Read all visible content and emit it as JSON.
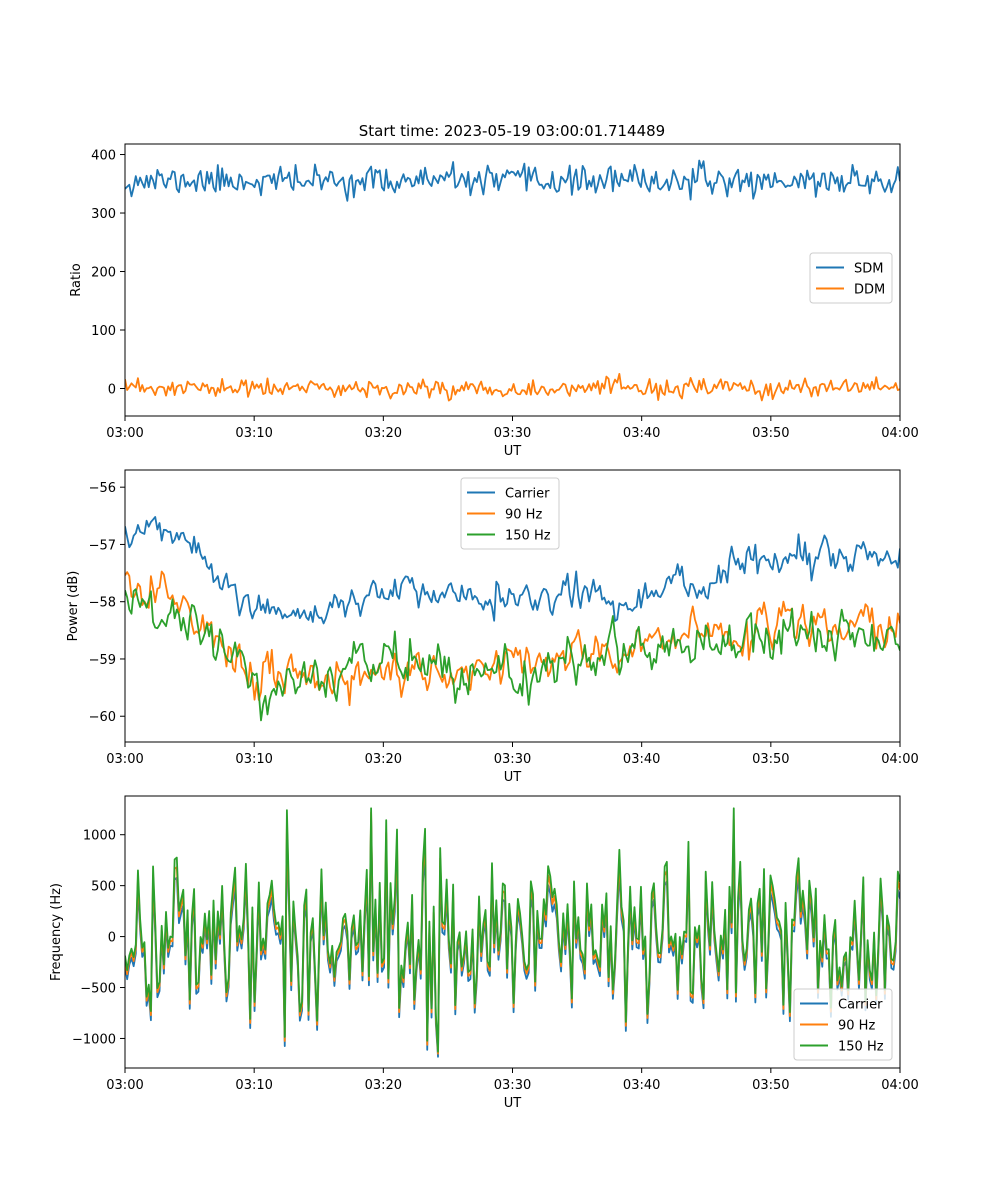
{
  "figure": {
    "title": "Start time: 2023-05-19 03:00:01.714489"
  },
  "colors": {
    "C0": "#1f77b4",
    "C1": "#ff7f0e",
    "C2": "#2ca02c"
  },
  "chart_data": [
    {
      "type": "line",
      "title": "Start time: 2023-05-19 03:00:01.714489",
      "xlabel": "UT",
      "ylabel": "Ratio",
      "xlim": [
        "03:00",
        "04:00"
      ],
      "ylim": [
        -47,
        418
      ],
      "xticks": [
        "03:00",
        "03:10",
        "03:20",
        "03:30",
        "03:40",
        "03:50",
        "04:00"
      ],
      "yticks": [
        0,
        100,
        200,
        300,
        400
      ],
      "ytick_labels": [
        "0",
        "100",
        "200",
        "300",
        "400"
      ],
      "legend": "center-right",
      "grid": false,
      "series": [
        {
          "name": "SDM",
          "color": "#1f77b4",
          "mean": 355,
          "std": 12,
          "min": 312,
          "max": 396,
          "seed": 11
        },
        {
          "name": "DDM",
          "color": "#ff7f0e",
          "mean": 0,
          "std": 8,
          "min": -25,
          "max": 25,
          "seed": 23
        }
      ]
    },
    {
      "type": "line",
      "title": "",
      "xlabel": "UT",
      "ylabel": "Power (dB)",
      "xlim": [
        "03:00",
        "04:00"
      ],
      "ylim": [
        -60.45,
        -55.7
      ],
      "xticks": [
        "03:00",
        "03:10",
        "03:20",
        "03:30",
        "03:40",
        "03:50",
        "04:00"
      ],
      "yticks": [
        -60,
        -59,
        -58,
        -57,
        -56
      ],
      "ytick_labels": [
        "−60",
        "−59",
        "−58",
        "−57",
        "−56"
      ],
      "legend": "top-center",
      "grid": false,
      "series": [
        {
          "name": "Carrier",
          "color": "#1f77b4",
          "std": 0.25,
          "seed": 5,
          "trend": [
            {
              "t": 0,
              "v": -56.7
            },
            {
              "t": 5,
              "v": -57.0
            },
            {
              "t": 8,
              "v": -57.8
            },
            {
              "t": 12,
              "v": -58.3
            },
            {
              "t": 20,
              "v": -57.8
            },
            {
              "t": 30,
              "v": -57.9
            },
            {
              "t": 40,
              "v": -57.9
            },
            {
              "t": 50,
              "v": -57.2
            },
            {
              "t": 60,
              "v": -57.2
            }
          ]
        },
        {
          "name": "90 Hz",
          "color": "#ff7f0e",
          "std": 0.35,
          "seed": 17,
          "trend": [
            {
              "t": 0,
              "v": -57.6
            },
            {
              "t": 5,
              "v": -58.2
            },
            {
              "t": 10,
              "v": -59.3
            },
            {
              "t": 22,
              "v": -59.3
            },
            {
              "t": 30,
              "v": -59.1
            },
            {
              "t": 40,
              "v": -58.8
            },
            {
              "t": 50,
              "v": -58.4
            },
            {
              "t": 60,
              "v": -58.5
            }
          ]
        },
        {
          "name": "150 Hz",
          "color": "#2ca02c",
          "std": 0.35,
          "seed": 29,
          "trend": [
            {
              "t": 0,
              "v": -58.0
            },
            {
              "t": 5,
              "v": -58.4
            },
            {
              "t": 12,
              "v": -59.5
            },
            {
              "t": 20,
              "v": -59.0
            },
            {
              "t": 30,
              "v": -59.4
            },
            {
              "t": 40,
              "v": -58.7
            },
            {
              "t": 50,
              "v": -58.6
            },
            {
              "t": 60,
              "v": -58.4
            }
          ]
        }
      ]
    },
    {
      "type": "line",
      "title": "",
      "xlabel": "UT",
      "ylabel": "Frequency (Hz)",
      "xlim": [
        "03:00",
        "04:00"
      ],
      "ylim": [
        -1290,
        1380
      ],
      "xticks": [
        "03:00",
        "03:10",
        "03:20",
        "03:30",
        "03:40",
        "03:50",
        "04:00"
      ],
      "yticks": [
        -1000,
        -500,
        0,
        500,
        1000
      ],
      "ytick_labels": [
        "−1000",
        "−500",
        "0",
        "500",
        "1000"
      ],
      "legend": "bottom-right",
      "grid": false,
      "series": [
        {
          "name": "Carrier",
          "color": "#1f77b4",
          "mean": 0,
          "std": 400,
          "min": -1180,
          "max": 1180,
          "offset": -50,
          "seed": 41
        },
        {
          "name": "90 Hz",
          "color": "#ff7f0e",
          "mean": 0,
          "std": 400,
          "min": -1150,
          "max": 1220,
          "offset": 0,
          "seed": 41
        },
        {
          "name": "150 Hz",
          "color": "#2ca02c",
          "mean": 0,
          "std": 400,
          "min": -1130,
          "max": 1260,
          "offset": 40,
          "seed": 41
        }
      ]
    }
  ]
}
